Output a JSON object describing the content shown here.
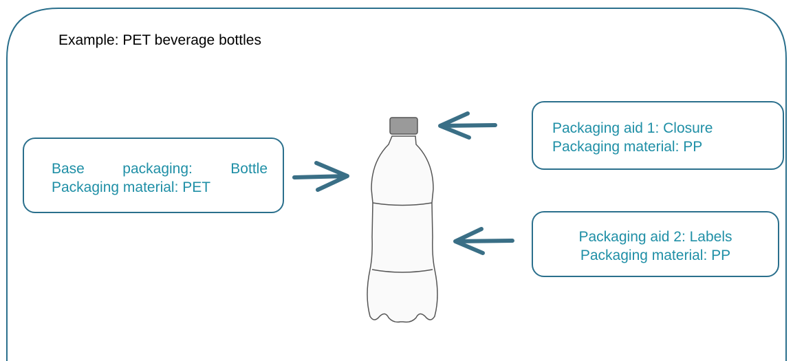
{
  "title": "Example: PET beverage bottles",
  "boxes": [
    {
      "lines": [
        "Base packaging: Bottle",
        "Packaging material: PET"
      ]
    },
    {
      "lines": [
        "Packaging aid 1: Closure",
        "Packaging material: PP"
      ]
    },
    {
      "lines": [
        "Packaging aid 2: Labels",
        "Packaging material: PP"
      ]
    }
  ]
}
